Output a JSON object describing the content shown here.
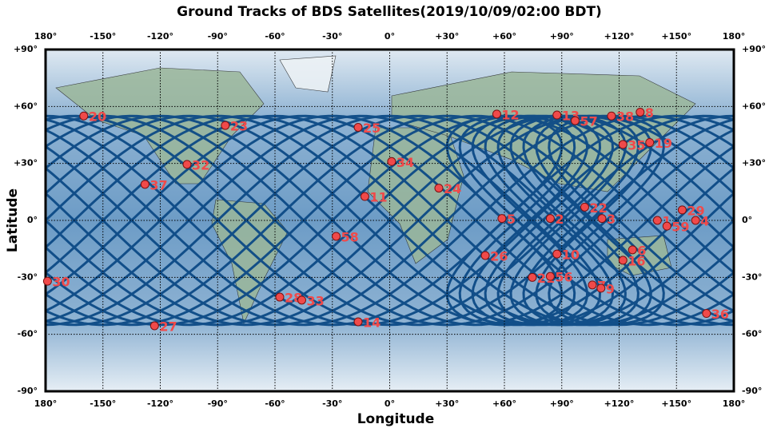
{
  "chart_data": {
    "type": "scatter",
    "title": "Ground Tracks of BDS Satellites(2019/10/09/02:00 BDT)",
    "xlabel": "Longitude",
    "ylabel": "Latitude",
    "color": "#f04a4a",
    "grid": true,
    "xlim": [
      -180,
      180
    ],
    "ylim": [
      -90,
      90
    ],
    "xticks": [
      {
        "value": -180,
        "label": "180°"
      },
      {
        "value": -150,
        "label": "-150°"
      },
      {
        "value": -120,
        "label": "-120°"
      },
      {
        "value": -90,
        "label": "-90°"
      },
      {
        "value": -60,
        "label": "-60°"
      },
      {
        "value": -30,
        "label": "-30°"
      },
      {
        "value": 0,
        "label": "0°"
      },
      {
        "value": 30,
        "label": "+30°"
      },
      {
        "value": 60,
        "label": "+60°"
      },
      {
        "value": 90,
        "label": "+90°"
      },
      {
        "value": 120,
        "label": "+120°"
      },
      {
        "value": 150,
        "label": "+150°"
      },
      {
        "value": 180,
        "label": "180°"
      }
    ],
    "yticks": [
      {
        "value": -90,
        "label": "-90°"
      },
      {
        "value": -60,
        "label": "-60°"
      },
      {
        "value": -30,
        "label": "-30°"
      },
      {
        "value": 0,
        "label": "0°"
      },
      {
        "value": 30,
        "label": "+30°"
      },
      {
        "value": 60,
        "label": "+60°"
      },
      {
        "value": 90,
        "label": "+90°"
      }
    ],
    "point_labels": [
      "20",
      "23",
      "25",
      "12",
      "13",
      "57",
      "38",
      "8",
      "35",
      "19",
      "32",
      "34",
      "37",
      "11",
      "24",
      "22",
      "3",
      "5",
      "2",
      "1",
      "29",
      "4",
      "59",
      "58",
      "26",
      "10",
      "6",
      "16",
      "30",
      "21",
      "56",
      "7",
      "9",
      "28",
      "33",
      "14",
      "27",
      "36"
    ],
    "x": [
      -160,
      -86,
      -16.5,
      56,
      87.5,
      97,
      116,
      131,
      122,
      136,
      -106,
      1,
      -128,
      -13,
      25.7,
      102,
      111,
      58.7,
      84,
      140,
      153,
      160,
      145,
      -28,
      50,
      87.5,
      127,
      122,
      -179,
      74.6,
      84,
      106,
      110.5,
      -57.5,
      -46,
      -16.5,
      -123,
      165.7
    ],
    "values": [
      55,
      50,
      49,
      56,
      55.5,
      52.5,
      55,
      57,
      40,
      41,
      29.5,
      31,
      19,
      12.6,
      17,
      7,
      1,
      1,
      1,
      0,
      5.5,
      0,
      -3,
      -8.4,
      -18.5,
      -17.7,
      -15.5,
      -21,
      -32,
      -30,
      -29.5,
      -34,
      -35.7,
      -40.4,
      -42,
      -53.4,
      -55.5,
      -49
    ]
  }
}
